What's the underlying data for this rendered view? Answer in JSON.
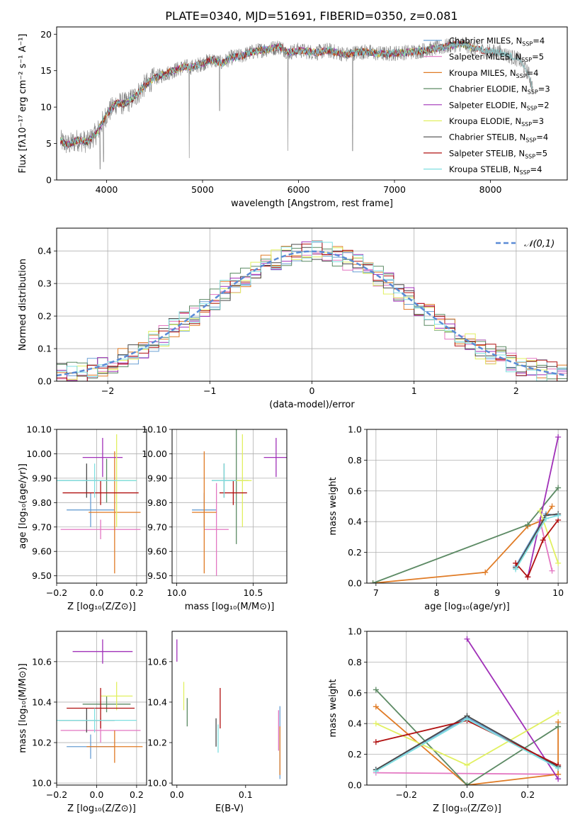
{
  "figure": {
    "title": "PLATE=0340, MJD=51691, FIBERID=0350, z=0.081"
  },
  "models": [
    {
      "label": "Chabrier MILES, N",
      "n": "4",
      "color": "#6a9fd3"
    },
    {
      "label": "Salpeter MILES, N",
      "n": "5",
      "color": "#e377c2"
    },
    {
      "label": "Kroupa MILES, N",
      "n": "4",
      "color": "#e07b25"
    },
    {
      "label": "Chabrier ELODIE, N",
      "n": "3",
      "color": "#5c8a64"
    },
    {
      "label": "Salpeter ELODIE, N",
      "n": "2",
      "color": "#a030b8"
    },
    {
      "label": "Kroupa ELODIE, N",
      "n": "3",
      "color": "#e1f060"
    },
    {
      "label": "Chabrier STELIB, N",
      "n": "4",
      "color": "#4a4a4a"
    },
    {
      "label": "Salpeter STELIB, N",
      "n": "5",
      "color": "#b01010"
    },
    {
      "label": "Kroupa STELIB, N",
      "n": "4",
      "color": "#7fdfe0"
    }
  ],
  "legend_sub": "SSP",
  "chart_data": [
    {
      "id": "spectrum",
      "type": "line",
      "xlabel": "wavelength [Angstrom, rest frame]",
      "ylabel": "Flux [fλ10⁻¹⁷ erg cm⁻² s⁻¹ A⁻¹]",
      "xlim": [
        3480,
        8800
      ],
      "ylim": [
        0,
        21
      ],
      "xticks": [
        4000,
        5000,
        6000,
        7000,
        8000
      ],
      "yticks": [
        0,
        5,
        10,
        15,
        20
      ],
      "continuum": [
        [
          3500,
          5.5
        ],
        [
          3600,
          4.8
        ],
        [
          3700,
          5.5
        ],
        [
          3800,
          5.2
        ],
        [
          3900,
          6.5
        ],
        [
          4000,
          9
        ],
        [
          4100,
          10.5
        ],
        [
          4200,
          10.5
        ],
        [
          4300,
          11.5
        ],
        [
          4400,
          13
        ],
        [
          4500,
          14
        ],
        [
          4600,
          14.5
        ],
        [
          4700,
          15
        ],
        [
          4800,
          15.5
        ],
        [
          4900,
          15.5
        ],
        [
          5000,
          16
        ],
        [
          5100,
          16.5
        ],
        [
          5200,
          16
        ],
        [
          5300,
          16.8
        ],
        [
          5400,
          17
        ],
        [
          5500,
          17.5
        ],
        [
          5600,
          17.8
        ],
        [
          5700,
          18
        ],
        [
          5800,
          18.3
        ],
        [
          5900,
          17.5
        ],
        [
          6000,
          17.8
        ],
        [
          6100,
          17.6
        ],
        [
          6200,
          17.5
        ],
        [
          6300,
          17.8
        ],
        [
          6400,
          17.5
        ],
        [
          6500,
          17.2
        ],
        [
          6600,
          17.5
        ],
        [
          6700,
          17.6
        ],
        [
          6800,
          17.4
        ],
        [
          6900,
          17.3
        ],
        [
          7000,
          17.4
        ],
        [
          7100,
          17.5
        ],
        [
          7200,
          17.6
        ],
        [
          7300,
          17.8
        ],
        [
          7400,
          18
        ],
        [
          7500,
          18.2
        ],
        [
          7600,
          18.5
        ],
        [
          7700,
          18.7
        ],
        [
          7800,
          18.2
        ],
        [
          7900,
          17.8
        ],
        [
          8000,
          17.6
        ],
        [
          8100,
          17.5
        ],
        [
          8200,
          17
        ],
        [
          8300,
          16.5
        ],
        [
          8400,
          14.5
        ],
        [
          8440,
          12.5
        ]
      ],
      "dips": [
        [
          3933,
          1.5
        ],
        [
          3968,
          2.5
        ],
        [
          4861,
          3
        ],
        [
          5177,
          9.5
        ],
        [
          5890,
          4
        ],
        [
          6563,
          4
        ],
        [
          6800,
          17.3
        ],
        [
          7400,
          17.8
        ]
      ]
    },
    {
      "id": "residuals",
      "type": "step-histogram",
      "xlabel": "(data-model)/error",
      "ylabel": "Normed distribution",
      "xlim": [
        -2.5,
        2.5
      ],
      "ylim": [
        0,
        0.47
      ],
      "xticks": [
        -2,
        -1,
        0,
        1,
        2
      ],
      "yticks": [
        0.0,
        0.1,
        0.2,
        0.3,
        0.4
      ],
      "bin_width": 0.1,
      "gaussian_label": "𝒩(0,1)",
      "gaussian_color": "#5b8bd6"
    },
    {
      "id": "age-vs-z",
      "type": "errorbar",
      "xlabel": "Z [log₁₀(Z/Z⊙)]",
      "ylabel": "age  [log₁₀(age/yr)]",
      "xlim": [
        -0.2,
        0.25
      ],
      "ylim": [
        9.47,
        10.1
      ],
      "xticks": [
        -0.2,
        0.0,
        0.2
      ],
      "yticks": [
        9.5,
        9.6,
        9.7,
        9.8,
        9.9,
        10.0,
        10.1
      ],
      "points": [
        {
          "m": 0,
          "x": -0.03,
          "y": 9.77,
          "xerr": 0.12,
          "yerr": 0.07
        },
        {
          "m": 1,
          "x": 0.02,
          "y": 9.69,
          "xerr": 0.2,
          "yerr": 0.04
        },
        {
          "m": 2,
          "x": 0.09,
          "y": 9.76,
          "xerr": 0.13,
          "yerr": 0.25
        },
        {
          "m": 3,
          "x": 0.05,
          "y": 9.89,
          "xerr": 0.12,
          "yerr": 0.09
        },
        {
          "m": 4,
          "x": 0.03,
          "y": 9.985,
          "xerr": 0.1,
          "yerr": 0.08
        },
        {
          "m": 5,
          "x": 0.1,
          "y": 9.89,
          "xerr": 0.1,
          "yerr": 0.19
        },
        {
          "m": 6,
          "x": -0.05,
          "y": 9.89,
          "xerr": 0.14,
          "yerr": 0.07
        },
        {
          "m": 7,
          "x": 0.02,
          "y": 9.84,
          "xerr": 0.19,
          "yerr": 0.05
        },
        {
          "m": 8,
          "x": -0.01,
          "y": 9.89,
          "xerr": 0.21,
          "yerr": 0.07
        }
      ]
    },
    {
      "id": "age-vs-mass",
      "type": "errorbar",
      "xlabel": "mass [log₁₀(M/M⊙)]",
      "ylabel": "",
      "xlim": [
        9.97,
        10.72
      ],
      "ylim": [
        9.47,
        10.1
      ],
      "xticks": [
        10.0,
        10.5
      ],
      "yticks": [
        9.5,
        9.6,
        9.7,
        9.8,
        9.9,
        10.0,
        10.1
      ],
      "points": [
        {
          "m": 0,
          "x": 10.18,
          "y": 9.77,
          "xerr": 0.08,
          "yerr": 0.07
        },
        {
          "m": 1,
          "x": 10.26,
          "y": 9.69,
          "xerr": 0.08,
          "yerr": 0.19
        },
        {
          "m": 2,
          "x": 10.18,
          "y": 9.76,
          "xerr": 0.08,
          "yerr": 0.25
        },
        {
          "m": 3,
          "x": 10.39,
          "y": 9.89,
          "xerr": 0.08,
          "yerr": 0.26
        },
        {
          "m": 4,
          "x": 10.65,
          "y": 9.985,
          "xerr": 0.08,
          "yerr": 0.08
        },
        {
          "m": 5,
          "x": 10.43,
          "y": 9.89,
          "xerr": 0.06,
          "yerr": 0.19
        },
        {
          "m": 6,
          "x": 10.31,
          "y": 9.89,
          "xerr": 0.08,
          "yerr": 0.07
        },
        {
          "m": 7,
          "x": 10.37,
          "y": 9.84,
          "xerr": 0.09,
          "yerr": 0.05
        },
        {
          "m": 8,
          "x": 10.31,
          "y": 9.89,
          "xerr": 0.08,
          "yerr": 0.07
        }
      ]
    },
    {
      "id": "weight-vs-age",
      "type": "line",
      "xlabel": "age  [log₁₀(age/yr)]",
      "ylabel": "mass weight",
      "xlim": [
        6.85,
        10.15
      ],
      "ylim": [
        0,
        1.0
      ],
      "xticks": [
        7,
        8,
        9,
        10
      ],
      "yticks": [
        0.0,
        0.2,
        0.4,
        0.6,
        0.8,
        1.0
      ],
      "series": [
        {
          "m": 0,
          "pts": [
            [
              9.3,
              0.11
            ],
            [
              9.8,
              0.45
            ],
            [
              10.0,
              0.44
            ]
          ]
        },
        {
          "m": 1,
          "pts": [
            [
              9.7,
              0.41
            ],
            [
              9.9,
              0.08
            ]
          ]
        },
        {
          "m": 2,
          "pts": [
            [
              6.95,
              0.0
            ],
            [
              8.8,
              0.07
            ],
            [
              9.5,
              0.37
            ],
            [
              9.75,
              0.41
            ],
            [
              9.9,
              0.5
            ]
          ]
        },
        {
          "m": 3,
          "pts": [
            [
              6.95,
              0.0
            ],
            [
              9.5,
              0.38
            ],
            [
              10.0,
              0.62
            ]
          ]
        },
        {
          "m": 4,
          "pts": [
            [
              9.5,
              0.04
            ],
            [
              10.0,
              0.95
            ]
          ]
        },
        {
          "m": 5,
          "pts": [
            [
              9.7,
              0.47
            ],
            [
              10.0,
              0.13
            ]
          ]
        },
        {
          "m": 6,
          "pts": [
            [
              9.3,
              0.1
            ],
            [
              9.8,
              0.44
            ],
            [
              10.0,
              0.45
            ]
          ]
        },
        {
          "m": 7,
          "pts": [
            [
              9.3,
              0.13
            ],
            [
              9.5,
              0.04
            ],
            [
              9.75,
              0.28
            ],
            [
              10.0,
              0.41
            ]
          ]
        },
        {
          "m": 8,
          "pts": [
            [
              9.3,
              0.09
            ],
            [
              9.8,
              0.42
            ],
            [
              10.0,
              0.44
            ]
          ]
        }
      ]
    },
    {
      "id": "mass-vs-z",
      "type": "errorbar",
      "xlabel": "Z [log₁₀(Z/Z⊙)]",
      "ylabel": "mass [log₁₀(M/M⊙)]",
      "xlim": [
        -0.2,
        0.25
      ],
      "ylim": [
        9.99,
        10.75
      ],
      "xticks": [
        -0.2,
        0.0,
        0.2
      ],
      "yticks": [
        10.0,
        10.2,
        10.4,
        10.6
      ],
      "points": [
        {
          "m": 0,
          "x": -0.03,
          "y": 10.18,
          "xerr": 0.12,
          "yerr": 0.06
        },
        {
          "m": 1,
          "x": 0.02,
          "y": 10.26,
          "xerr": 0.2,
          "yerr": 0.06
        },
        {
          "m": 2,
          "x": 0.09,
          "y": 10.18,
          "xerr": 0.14,
          "yerr": 0.08
        },
        {
          "m": 3,
          "x": 0.05,
          "y": 10.39,
          "xerr": 0.12,
          "yerr": 0.04
        },
        {
          "m": 4,
          "x": 0.03,
          "y": 10.65,
          "xerr": 0.15,
          "yerr": 0.06
        },
        {
          "m": 5,
          "x": 0.1,
          "y": 10.43,
          "xerr": 0.08,
          "yerr": 0.07
        },
        {
          "m": 6,
          "x": -0.05,
          "y": 10.31,
          "xerr": 0.14,
          "yerr": 0.06
        },
        {
          "m": 7,
          "x": 0.02,
          "y": 10.37,
          "xerr": 0.17,
          "yerr": 0.1
        },
        {
          "m": 8,
          "x": -0.01,
          "y": 10.31,
          "xerr": 0.21,
          "yerr": 0.06
        }
      ]
    },
    {
      "id": "mass-vs-ebv",
      "type": "errorbar",
      "xlabel": "E(B-V)",
      "ylabel": "",
      "xlim": [
        -0.007,
        0.16
      ],
      "ylim": [
        9.99,
        10.75
      ],
      "xticks": [
        0.0,
        0.1
      ],
      "yticks": [
        10.0,
        10.2,
        10.4,
        10.6
      ],
      "points": [
        {
          "m": 0,
          "x": 0.15,
          "y": 10.2,
          "xerr": 0,
          "yerr": 0.18
        },
        {
          "m": 1,
          "x": 0.148,
          "y": 10.26,
          "xerr": 0,
          "yerr": 0.1
        },
        {
          "m": 2,
          "x": 0.15,
          "y": 10.16,
          "xerr": 0,
          "yerr": 0.12
        },
        {
          "m": 3,
          "x": 0.015,
          "y": 10.35,
          "xerr": 0,
          "yerr": 0.07
        },
        {
          "m": 4,
          "x": 0.0,
          "y": 10.655,
          "xerr": 0,
          "yerr": 0.055
        },
        {
          "m": 5,
          "x": 0.01,
          "y": 10.43,
          "xerr": 0,
          "yerr": 0.07
        },
        {
          "m": 6,
          "x": 0.057,
          "y": 10.25,
          "xerr": 0,
          "yerr": 0.07
        },
        {
          "m": 7,
          "x": 0.063,
          "y": 10.37,
          "xerr": 0,
          "yerr": 0.1
        },
        {
          "m": 8,
          "x": 0.06,
          "y": 10.22,
          "xerr": 0,
          "yerr": 0.07
        }
      ]
    },
    {
      "id": "weight-vs-z",
      "type": "line",
      "xlabel": "Z [log₁₀(Z/Z⊙)]",
      "ylabel": "mass weight",
      "xlim": [
        -0.33,
        0.33
      ],
      "ylim": [
        0,
        1.0
      ],
      "xticks": [
        -0.2,
        0.0,
        0.2
      ],
      "yticks": [
        0.0,
        0.2,
        0.4,
        0.6,
        0.8,
        1.0
      ],
      "series": [
        {
          "m": 0,
          "pts": [
            [
              -0.3,
              0.1
            ],
            [
              0.0,
              0.44
            ],
            [
              0.3,
              0.12
            ]
          ]
        },
        {
          "m": 1,
          "pts": [
            [
              -0.3,
              0.08
            ],
            [
              0.3,
              0.07
            ]
          ]
        },
        {
          "m": 2,
          "pts": [
            [
              -0.3,
              0.51
            ],
            [
              0.0,
              0.0
            ],
            [
              0.3,
              0.07
            ],
            [
              0.3,
              0.41
            ]
          ]
        },
        {
          "m": 3,
          "pts": [
            [
              -0.3,
              0.62
            ],
            [
              0.0,
              0.0
            ],
            [
              0.3,
              0.38
            ]
          ]
        },
        {
          "m": 4,
          "pts": [
            [
              0.0,
              0.95
            ],
            [
              0.3,
              0.04
            ]
          ]
        },
        {
          "m": 5,
          "pts": [
            [
              -0.3,
              0.4
            ],
            [
              0.0,
              0.13
            ],
            [
              0.3,
              0.47
            ]
          ]
        },
        {
          "m": 6,
          "pts": [
            [
              -0.3,
              0.1
            ],
            [
              0.0,
              0.45
            ],
            [
              0.3,
              0.12
            ]
          ]
        },
        {
          "m": 7,
          "pts": [
            [
              -0.3,
              0.28
            ],
            [
              0.0,
              0.42
            ],
            [
              0.3,
              0.13
            ]
          ]
        },
        {
          "m": 8,
          "pts": [
            [
              -0.3,
              0.09
            ],
            [
              0.0,
              0.43
            ],
            [
              0.3,
              0.11
            ]
          ]
        }
      ]
    }
  ]
}
